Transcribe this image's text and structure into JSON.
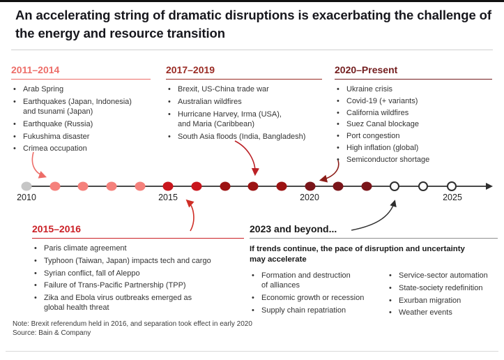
{
  "title": "An accelerating string of dramatic disruptions is exacerbating the challenge of the energy and resource transition",
  "palette": {
    "salmon": "#ed6d68",
    "bright_red": "#cb2026",
    "dark_red": "#9a2b24",
    "maroon": "#731d1e",
    "gray_dot": "#c6c6c6",
    "body_text": "#333333"
  },
  "sections": {
    "era_2011_2014": {
      "title": "2011–2014",
      "accent_color": "#ed6d68",
      "items": [
        "Arab Spring",
        "Earthquakes (Japan, Indonesia)\nand tsunami (Japan)",
        "Earthquake (Russia)",
        "Fukushima disaster",
        "Crimea occupation"
      ]
    },
    "era_2017_2019": {
      "title": "2017–2019",
      "accent_color": "#9a2b24",
      "items": [
        "Brexit, US-China trade war",
        "Australian wildfires",
        "Hurricane Harvey, Irma (USA),\nand Maria (Caribbean)",
        "South Asia floods (India, Bangladesh)"
      ]
    },
    "era_2020_present": {
      "title": "2020–Present",
      "accent_color": "#731d1e",
      "items": [
        "Ukraine crisis",
        "Covid-19 (+ variants)",
        "California wildfires",
        "Suez Canal blockage",
        "Port congestion",
        "High inflation (global)",
        "Semiconductor shortage"
      ]
    },
    "era_2015_2016": {
      "title": "2015–2016",
      "accent_color": "#cb2026",
      "items": [
        "Paris climate agreement",
        "Typhoon (Taiwan, Japan) impacts tech and cargo",
        "Syrian conflict, fall of Aleppo",
        "Failure of Trans-Pacific Partnership (TPP)",
        "Zika and Ebola virus outbreaks emerged as\nglobal health threat"
      ]
    },
    "era_2023_beyond": {
      "title": "2023 and beyond...",
      "subtitle": "If trends continue, the pace of disruption and uncertainty\nmay accelerate",
      "items_left": [
        "Formation and destruction\nof alliances",
        "Economic growth or recession",
        "Supply chain repatriation"
      ],
      "items_right": [
        "Service-sector automation",
        "State-society redefinition",
        "Exurban migration",
        "Weather events"
      ]
    }
  },
  "timeline": {
    "axis_labels": [
      "2010",
      "2015",
      "2020",
      "2025"
    ],
    "dots": [
      {
        "year": "2010",
        "color": "#c6c6c6",
        "hollow": false
      },
      {
        "year": "2011",
        "color": "#f5817c",
        "hollow": false
      },
      {
        "year": "2012",
        "color": "#f5817c",
        "hollow": false
      },
      {
        "year": "2013",
        "color": "#f5817c",
        "hollow": false
      },
      {
        "year": "2014",
        "color": "#f5817c",
        "hollow": false
      },
      {
        "year": "2015",
        "color": "#c9161d",
        "hollow": false
      },
      {
        "year": "2016",
        "color": "#c9161d",
        "hollow": false
      },
      {
        "year": "2017",
        "color": "#9c1313",
        "hollow": false
      },
      {
        "year": "2018",
        "color": "#9c1313",
        "hollow": false
      },
      {
        "year": "2019",
        "color": "#9c1313",
        "hollow": false
      },
      {
        "year": "2020",
        "color": "#7a151a",
        "hollow": false
      },
      {
        "year": "2021",
        "color": "#7a151a",
        "hollow": false
      },
      {
        "year": "2022",
        "color": "#7a151a",
        "hollow": false
      },
      {
        "year": "2023",
        "color": "#ffffff",
        "hollow": true
      },
      {
        "year": "2024",
        "color": "#ffffff",
        "hollow": true
      },
      {
        "year": "2025",
        "color": "#ffffff",
        "hollow": true
      }
    ]
  },
  "footer": {
    "note": "Note: Brexit referendum held in 2016, and separation took effect in early 2020",
    "source": "Source: Bain & Company"
  }
}
